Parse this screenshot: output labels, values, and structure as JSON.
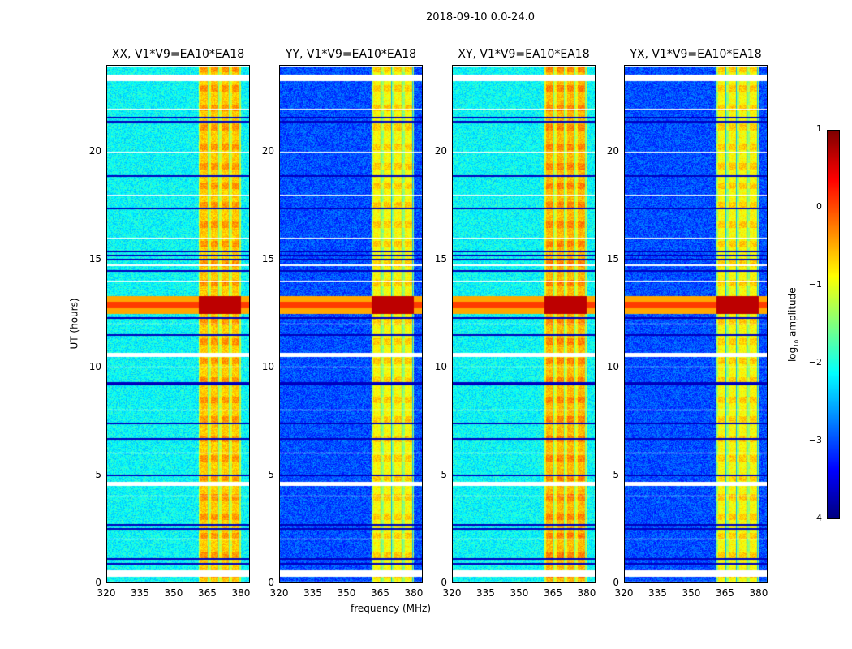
{
  "chart_data": {
    "type": "heatmap",
    "suptitle": "2018-09-10 0.0-24.0",
    "xlabel": "frequency (MHz)",
    "ylabel": "UT (hours)",
    "xlim": [
      320,
      384
    ],
    "ylim": [
      0,
      24
    ],
    "xticks": [
      320,
      335,
      350,
      365,
      380
    ],
    "yticks": [
      0,
      5,
      10,
      15,
      20
    ],
    "colorbar": {
      "label": "log10 amplitude",
      "label_main": "log",
      "label_sub": "10",
      "label_rest": " amplitude",
      "range": [
        -4,
        1
      ],
      "ticks": [
        1,
        0,
        -1,
        -2,
        -3,
        -4
      ],
      "tick_labels": [
        "1",
        "0",
        "−1",
        "−2",
        "−3",
        "−4"
      ],
      "colormap": "jet"
    },
    "panels": [
      {
        "title": "XX, V1*V9=EA10*EA18",
        "background": -2.2,
        "band_level": -0.5
      },
      {
        "title": "YY, V1*V9=EA10*EA18",
        "background": -3.2,
        "band_level": -0.8
      },
      {
        "title": "XY, V1*V9=EA10*EA18",
        "background": -2.2,
        "band_level": -0.4
      },
      {
        "title": "YX, V1*V9=EA10*EA18",
        "background": -3.2,
        "band_level": -0.8
      }
    ],
    "band_MHz": [
      361,
      380
    ],
    "strong_rfi_hours": [
      12.5,
      13.3
    ],
    "flagged_hours": [
      [
        0.3,
        0.6
      ],
      [
        4.5,
        4.7
      ],
      [
        10.5,
        10.7
      ],
      [
        14.7,
        14.8
      ],
      [
        23.3,
        23.6
      ]
    ],
    "dark_row_hours": [
      0.9,
      1.1,
      2.5,
      2.7,
      5.0,
      6.7,
      7.4,
      9.3,
      9.2,
      11.5,
      12.3,
      14.5,
      15.0,
      15.2,
      15.4,
      17.4,
      18.9,
      21.6,
      21.4
    ]
  }
}
